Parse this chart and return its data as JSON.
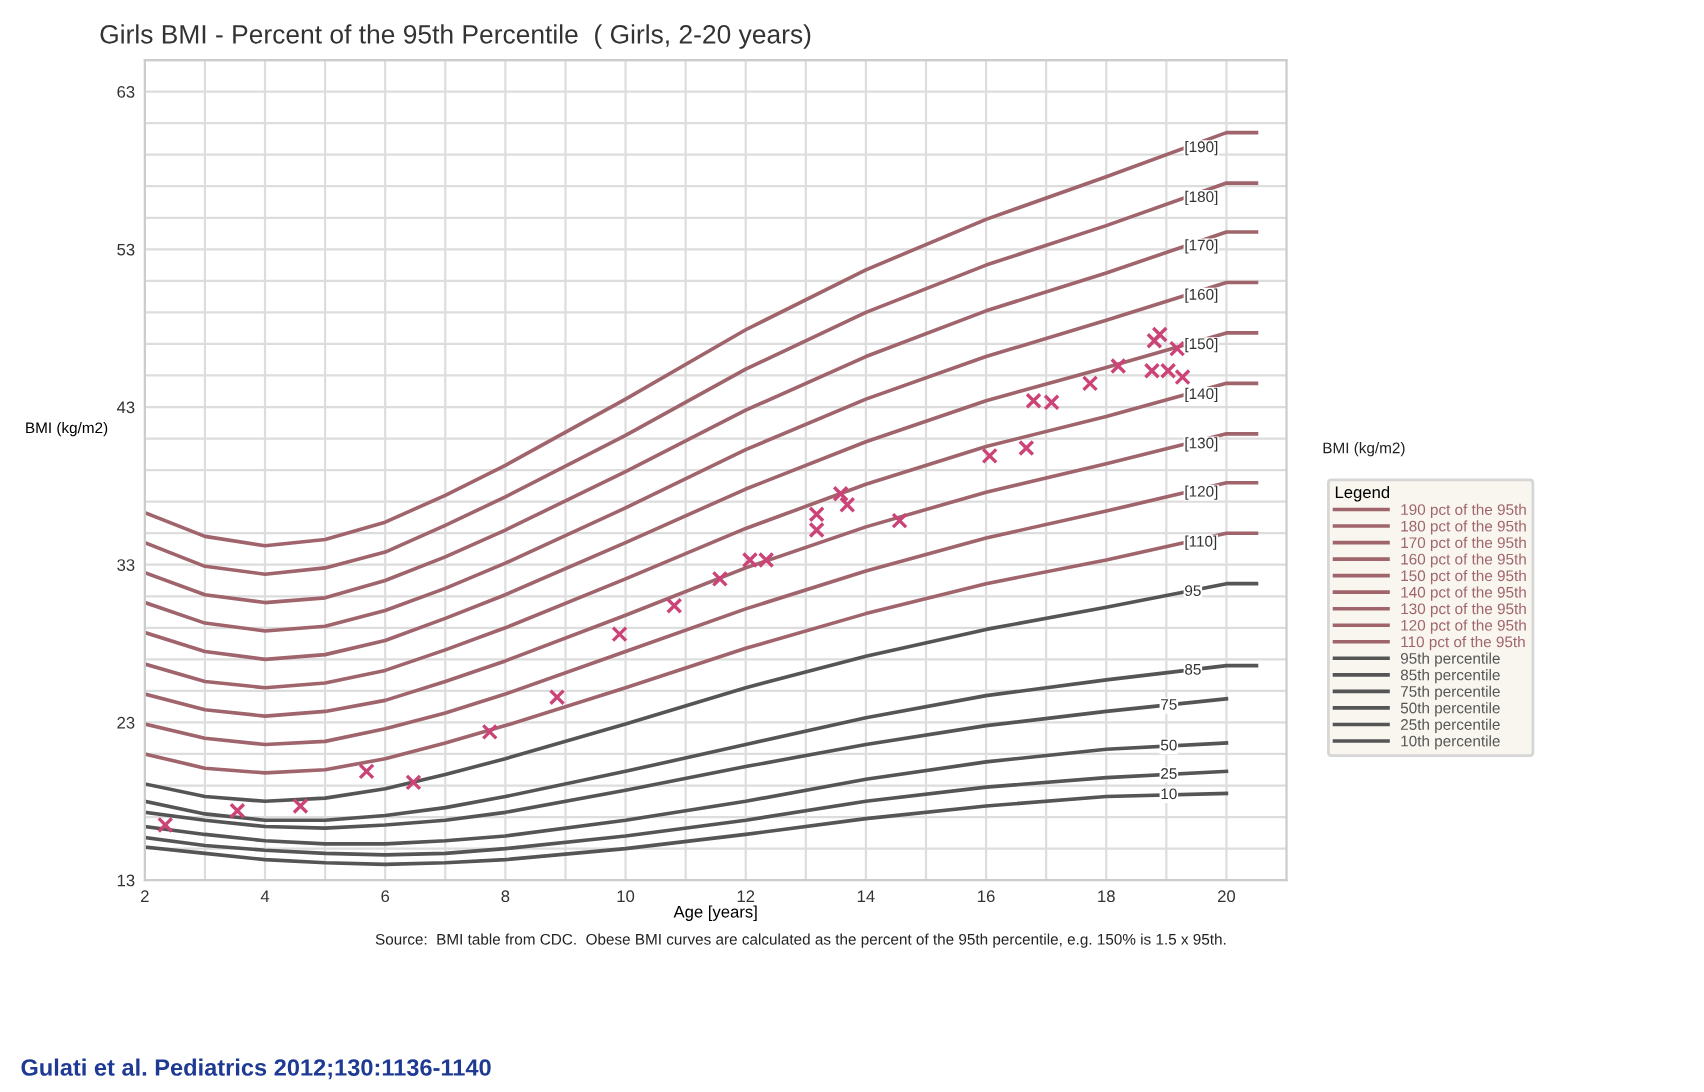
{
  "chart_data": {
    "type": "line",
    "title": "Girls BMI - Percent of the 95th Percentile  ( Girls, 2-20 years)",
    "xlabel": "Age [years]",
    "ylabel": "BMI (kg/m2)",
    "legend_title": "Legend",
    "legend": "right",
    "grid": true,
    "line_style": "solid",
    "xlim": [
      2,
      21
    ],
    "xticks": [
      2,
      {
        "value": 3,
        "label": null
      },
      4,
      {
        "value": 5,
        "label": null
      },
      6,
      {
        "value": 7,
        "label": null
      },
      8,
      {
        "value": 9,
        "label": null
      },
      10,
      {
        "value": 11,
        "label": null
      },
      12,
      {
        "value": 13,
        "label": null
      },
      14,
      {
        "value": 15,
        "label": null
      },
      16,
      {
        "value": 17,
        "label": null
      },
      18,
      {
        "value": 19,
        "label": null
      },
      20
    ],
    "ylim": [
      13,
      65
    ],
    "yticks": [
      13,
      {
        "value": 15,
        "label": null
      },
      {
        "value": 17,
        "label": null
      },
      {
        "value": 19,
        "label": null
      },
      {
        "value": 21,
        "label": null
      },
      23,
      {
        "value": 25,
        "label": null
      },
      {
        "value": 27,
        "label": null
      },
      {
        "value": 29,
        "label": null
      },
      {
        "value": 31,
        "label": null
      },
      33,
      {
        "value": 35,
        "label": null
      },
      {
        "value": 37,
        "label": null
      },
      {
        "value": 39,
        "label": null
      },
      {
        "value": 41,
        "label": null
      },
      43,
      {
        "value": 45,
        "label": null
      },
      {
        "value": 47,
        "label": null
      },
      {
        "value": 49,
        "label": null
      },
      {
        "value": 51,
        "label": null
      },
      53,
      {
        "value": 55,
        "label": null
      },
      {
        "value": 57,
        "label": null
      },
      {
        "value": 59,
        "label": null
      },
      {
        "value": 61,
        "label": null
      },
      63,
      {
        "value": 65,
        "label": null
      }
    ],
    "series": [
      {
        "name": "190 pct of the 95th",
        "color": "#a0646c",
        "x": [
          2,
          3,
          4,
          5,
          6,
          7,
          8,
          10,
          12,
          14,
          16,
          18,
          20,
          20.5
        ],
        "values": [
          36.3,
          34.8,
          34.2,
          34.6,
          35.7,
          37.4,
          39.3,
          43.5,
          47.9,
          51.7,
          54.9,
          57.6,
          60.4,
          60.4
        ]
      },
      {
        "name": "180 pct of the 95th",
        "color": "#a0646c",
        "x": [
          2,
          3,
          4,
          5,
          6,
          7,
          8,
          10,
          12,
          14,
          16,
          18,
          20,
          20.5
        ],
        "values": [
          34.4,
          32.9,
          32.4,
          32.8,
          33.8,
          35.5,
          37.3,
          41.2,
          45.4,
          49.0,
          52.0,
          54.5,
          57.2,
          57.2
        ]
      },
      {
        "name": "170 pct of the 95th",
        "color": "#a0646c",
        "x": [
          2,
          3,
          4,
          5,
          6,
          7,
          8,
          10,
          12,
          14,
          16,
          18,
          20,
          20.5
        ],
        "values": [
          32.5,
          31.1,
          30.6,
          30.9,
          32.0,
          33.5,
          35.2,
          38.9,
          42.8,
          46.2,
          49.1,
          51.5,
          54.1,
          54.1
        ]
      },
      {
        "name": "160 pct of the 95th",
        "color": "#a0646c",
        "x": [
          2,
          3,
          4,
          5,
          6,
          7,
          8,
          10,
          12,
          14,
          16,
          18,
          20,
          20.5
        ],
        "values": [
          30.6,
          29.3,
          28.8,
          29.1,
          30.1,
          31.5,
          33.1,
          36.6,
          40.3,
          43.5,
          46.2,
          48.5,
          50.9,
          50.9
        ]
      },
      {
        "name": "150 pct of the 95th",
        "color": "#a0646c",
        "x": [
          2,
          3,
          4,
          5,
          6,
          7,
          8,
          10,
          12,
          14,
          16,
          18,
          20,
          20.5
        ],
        "values": [
          28.7,
          27.5,
          27.0,
          27.3,
          28.2,
          29.6,
          31.1,
          34.4,
          37.8,
          40.8,
          43.4,
          45.5,
          47.7,
          47.7
        ]
      },
      {
        "name": "140 pct of the 95th",
        "color": "#a0646c",
        "x": [
          2,
          3,
          4,
          5,
          6,
          7,
          8,
          10,
          12,
          14,
          16,
          18,
          20,
          20.5
        ],
        "values": [
          26.7,
          25.6,
          25.2,
          25.5,
          26.3,
          27.6,
          29.0,
          32.1,
          35.3,
          38.1,
          40.5,
          42.4,
          44.5,
          44.5
        ]
      },
      {
        "name": "130 pct of the 95th",
        "color": "#a0646c",
        "x": [
          2,
          3,
          4,
          5,
          6,
          7,
          8,
          10,
          12,
          14,
          16,
          18,
          20,
          20.5
        ],
        "values": [
          24.8,
          23.8,
          23.4,
          23.7,
          24.4,
          25.6,
          26.9,
          29.8,
          32.8,
          35.4,
          37.6,
          39.4,
          41.3,
          41.3
        ]
      },
      {
        "name": "120 pct of the 95th",
        "color": "#a0646c",
        "x": [
          2,
          3,
          4,
          5,
          6,
          7,
          8,
          10,
          12,
          14,
          16,
          18,
          20,
          20.5
        ],
        "values": [
          22.9,
          22.0,
          21.6,
          21.8,
          22.6,
          23.6,
          24.8,
          27.5,
          30.2,
          32.6,
          34.7,
          36.4,
          38.2,
          38.2
        ]
      },
      {
        "name": "110 pct of the 95th",
        "color": "#a0646c",
        "x": [
          2,
          3,
          4,
          5,
          6,
          7,
          8,
          10,
          12,
          14,
          16,
          18,
          20,
          20.5
        ],
        "values": [
          21.0,
          20.1,
          19.8,
          20.0,
          20.7,
          21.7,
          22.8,
          25.2,
          27.7,
          29.9,
          31.8,
          33.3,
          35.0,
          35.0
        ]
      },
      {
        "name": "95th percentile",
        "color": "#555555",
        "x": [
          2,
          3,
          4,
          5,
          6,
          7,
          8,
          10,
          12,
          14,
          16,
          18,
          20,
          20.5
        ],
        "values": [
          19.1,
          18.3,
          18.0,
          18.2,
          18.8,
          19.7,
          20.7,
          22.9,
          25.2,
          27.2,
          28.9,
          30.3,
          31.8,
          31.8
        ]
      },
      {
        "name": "85th percentile",
        "color": "#555555",
        "x": [
          2,
          3,
          4,
          5,
          6,
          7,
          8,
          10,
          12,
          14,
          16,
          18,
          20,
          20.5
        ],
        "values": [
          18.0,
          17.2,
          16.8,
          16.8,
          17.1,
          17.6,
          18.3,
          19.9,
          21.6,
          23.3,
          24.7,
          25.7,
          26.6,
          26.6
        ]
      },
      {
        "name": "75th percentile",
        "color": "#555555",
        "x": [
          2,
          3,
          4,
          5,
          6,
          7,
          8,
          10,
          12,
          14,
          16,
          18,
          20
        ],
        "values": [
          17.3,
          16.8,
          16.4,
          16.3,
          16.5,
          16.8,
          17.3,
          18.7,
          20.2,
          21.6,
          22.8,
          23.7,
          24.5
        ]
      },
      {
        "name": "50th percentile",
        "color": "#555555",
        "x": [
          2,
          3,
          4,
          5,
          6,
          7,
          8,
          10,
          12,
          14,
          16,
          18,
          20
        ],
        "values": [
          16.4,
          15.9,
          15.5,
          15.3,
          15.3,
          15.5,
          15.8,
          16.8,
          18.0,
          19.4,
          20.5,
          21.3,
          21.7
        ]
      },
      {
        "name": "25th percentile",
        "color": "#555555",
        "x": [
          2,
          3,
          4,
          5,
          6,
          7,
          8,
          10,
          12,
          14,
          16,
          18,
          20
        ],
        "values": [
          15.7,
          15.2,
          14.9,
          14.7,
          14.6,
          14.7,
          15.0,
          15.8,
          16.8,
          18.0,
          18.9,
          19.5,
          19.9
        ]
      },
      {
        "name": "10th percentile",
        "color": "#555555",
        "x": [
          2,
          3,
          4,
          5,
          6,
          7,
          8,
          10,
          12,
          14,
          16,
          18,
          20
        ],
        "values": [
          15.1,
          14.7,
          14.3,
          14.1,
          14.0,
          14.1,
          14.3,
          15.0,
          15.9,
          16.9,
          17.7,
          18.3,
          18.5
        ]
      },
      {
        "type": "scatter",
        "marker": "cross",
        "color": "#cc4477",
        "x": [
          2.34,
          3.54,
          4.59,
          5.69,
          6.47,
          7.74,
          8.86,
          9.9,
          10.81,
          11.57,
          12.07,
          12.34,
          13.18,
          13.18,
          13.58,
          13.69,
          14.56,
          16.06,
          16.67,
          16.79,
          17.09,
          17.73,
          18.2,
          18.76,
          19.03,
          19.27,
          18.8,
          18.89,
          19.18
        ],
        "values": [
          16.5,
          17.4,
          17.7,
          19.9,
          19.2,
          22.4,
          24.6,
          28.6,
          30.4,
          32.1,
          33.3,
          33.3,
          35.2,
          36.2,
          37.5,
          36.8,
          35.8,
          39.9,
          40.4,
          43.4,
          43.3,
          44.5,
          45.6,
          45.3,
          45.3,
          44.9,
          47.2,
          47.6,
          46.7
        ]
      }
    ],
    "annotations": [
      "[190]",
      "[180]",
      "[170]",
      "[160]",
      "[150]",
      "[140]",
      "[130]",
      "[120]",
      "[110]",
      "95",
      "85",
      "75",
      "50",
      "25",
      "10",
      "Source:  BMI table from CDC.  Obese BMI curves are calculated as the percent of the 95th percentile, e.g. 150% is 1.5 x 95th.",
      "Gulati et al. Pediatrics 2012;130:1136-1140",
      "BMI (kg/m2)"
    ]
  }
}
